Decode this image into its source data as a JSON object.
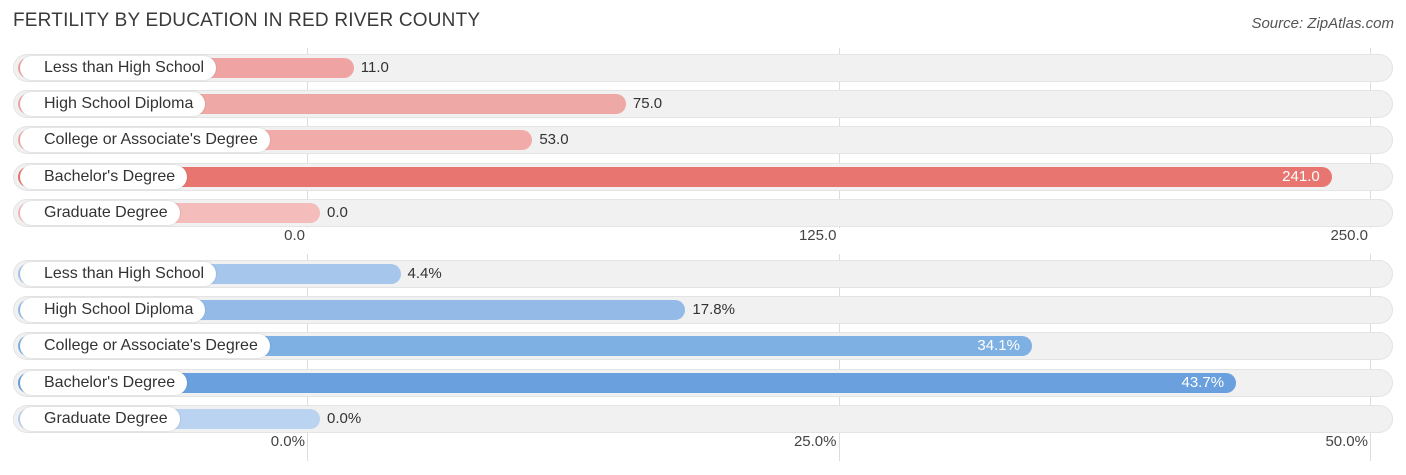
{
  "title": "FERTILITY BY EDUCATION IN RED RIVER COUNTY",
  "source": "Source: ZipAtlas.com",
  "chart_data": [
    {
      "type": "bar",
      "orientation": "horizontal",
      "categories": [
        "Less than High School",
        "High School Diploma",
        "College or Associate's Degree",
        "Bachelor's Degree",
        "Graduate Degree"
      ],
      "values": [
        11.0,
        75.0,
        53.0,
        241.0,
        0.0
      ],
      "value_labels": [
        "11.0",
        "75.0",
        "53.0",
        "241.0",
        "0.0"
      ],
      "xlim": [
        0,
        250
      ],
      "ticks": [
        0,
        125,
        250
      ],
      "tick_labels": [
        "0.0",
        "125.0",
        "250.0"
      ],
      "bar_color": "#f0a3a3",
      "highlight_color": "#e8756f",
      "highlight_index": 3
    },
    {
      "type": "bar",
      "orientation": "horizontal",
      "categories": [
        "Less than High School",
        "High School Diploma",
        "College or Associate's Degree",
        "Bachelor's Degree",
        "Graduate Degree"
      ],
      "values": [
        4.4,
        17.8,
        34.1,
        43.7,
        0.0
      ],
      "value_labels": [
        "4.4%",
        "17.8%",
        "34.1%",
        "43.7%",
        "0.0%"
      ],
      "xlim": [
        0,
        50
      ],
      "ticks": [
        0,
        25,
        50
      ],
      "tick_labels": [
        "0.0%",
        "25.0%",
        "50.0%"
      ],
      "bar_color": "#a6c6ec",
      "highlight_color": "#6aa0dd",
      "highlight_index": 3
    }
  ]
}
